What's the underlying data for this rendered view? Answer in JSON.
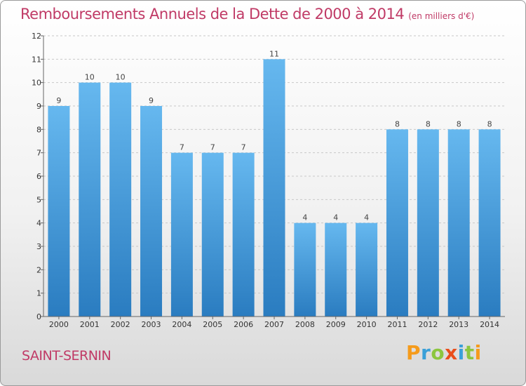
{
  "header": {
    "title": "Remboursements Annuels de la Dette de 2000 à 2014",
    "subtitle": "(en milliers d'€)"
  },
  "footer": {
    "commune": "SAINT-SERNIN",
    "brand": "Proxiti",
    "brand_colors": [
      "#f59b1b",
      "#3aa0d8",
      "#8cc63f",
      "#e94e1b",
      "#3aa0d8",
      "#8cc63f",
      "#f59b1b"
    ]
  },
  "colors": {
    "bar_light": "#66b8ef",
    "bar_dark": "#2a7cc0",
    "title": "#c03a66"
  },
  "chart_data": {
    "type": "bar",
    "categories": [
      "2000",
      "2001",
      "2002",
      "2003",
      "2004",
      "2005",
      "2006",
      "2007",
      "2008",
      "2009",
      "2010",
      "2011",
      "2012",
      "2013",
      "2014"
    ],
    "values": [
      9,
      10,
      10,
      9,
      7,
      7,
      7,
      11,
      4,
      4,
      4,
      8,
      8,
      8,
      8
    ],
    "title": "Remboursements Annuels de la Dette de 2000 à 2014",
    "xlabel": "",
    "ylabel": "",
    "ylim": [
      0,
      12
    ],
    "yticks": [
      0,
      1,
      2,
      3,
      4,
      5,
      6,
      7,
      8,
      9,
      10,
      11,
      12
    ],
    "grid": true,
    "legend": "none"
  }
}
